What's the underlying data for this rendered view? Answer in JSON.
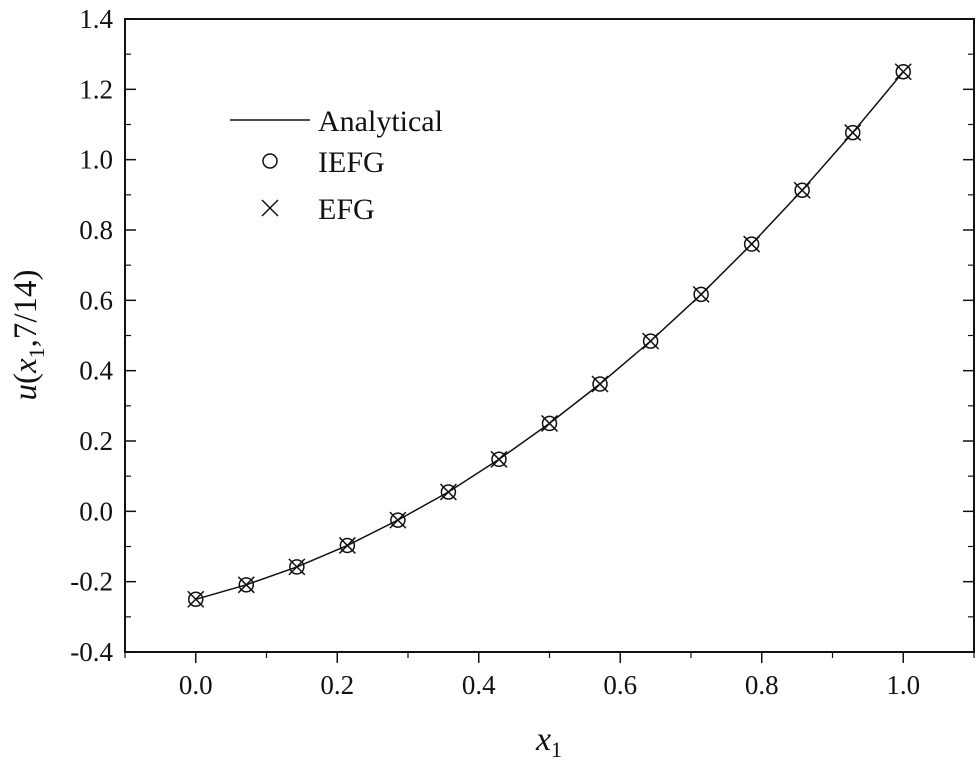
{
  "chart_data": {
    "type": "line",
    "title": "",
    "xlabel": {
      "base": "x",
      "sub": "1"
    },
    "ylabel": {
      "func": "u",
      "open": "(",
      "base": "x",
      "sub": "1",
      "rest": ",7/14)"
    },
    "xlim": [
      -0.1,
      1.1
    ],
    "ylim": [
      -0.4,
      1.4
    ],
    "xticks": [
      "0.0",
      "0.2",
      "0.4",
      "0.6",
      "0.8",
      "1.0"
    ],
    "yticks": [
      "-0.4",
      "-0.2",
      "0.0",
      "0.2",
      "0.4",
      "0.6",
      "0.8",
      "1.0",
      "1.2",
      "1.4"
    ],
    "grid": false,
    "legend_position": "top-left",
    "series": [
      {
        "name": "Analytical",
        "style": "line",
        "color": "#111111",
        "x": [
          0,
          0.0714,
          0.1429,
          0.2143,
          0.2857,
          0.3571,
          0.4286,
          0.5,
          0.5714,
          0.6429,
          0.7143,
          0.7857,
          0.8571,
          0.9286,
          1.0
        ],
        "y": [
          -0.25,
          -0.209,
          -0.158,
          -0.097,
          -0.025,
          0.055,
          0.148,
          0.25,
          0.362,
          0.484,
          0.617,
          0.76,
          0.913,
          1.077,
          1.25
        ]
      },
      {
        "name": "IEFG",
        "style": "circle",
        "color": "#111111",
        "x": [
          0,
          0.0714,
          0.1429,
          0.2143,
          0.2857,
          0.3571,
          0.4286,
          0.5,
          0.5714,
          0.6429,
          0.7143,
          0.7857,
          0.8571,
          0.9286,
          1.0
        ],
        "y": [
          -0.25,
          -0.209,
          -0.158,
          -0.097,
          -0.025,
          0.055,
          0.148,
          0.25,
          0.362,
          0.484,
          0.617,
          0.76,
          0.913,
          1.077,
          1.25
        ]
      },
      {
        "name": "EFG",
        "style": "cross",
        "color": "#111111",
        "x": [
          0,
          0.0714,
          0.1429,
          0.2143,
          0.2857,
          0.3571,
          0.4286,
          0.5,
          0.5714,
          0.6429,
          0.7143,
          0.7857,
          0.8571,
          0.9286,
          1.0
        ],
        "y": [
          -0.25,
          -0.209,
          -0.158,
          -0.097,
          -0.025,
          0.055,
          0.148,
          0.25,
          0.362,
          0.484,
          0.617,
          0.76,
          0.913,
          1.077,
          1.25
        ]
      }
    ]
  }
}
